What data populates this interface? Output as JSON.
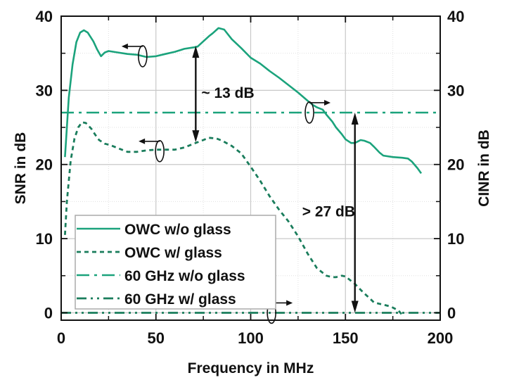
{
  "chart_data": {
    "type": "line",
    "title": "",
    "xlabel": "Frequency in MHz",
    "ylabel": "SNR in dB",
    "y2label": "CINR in dB",
    "xlim": [
      0,
      200
    ],
    "ylim": [
      -1,
      40
    ],
    "y2lim": [
      -1,
      40
    ],
    "xticks": [
      0,
      50,
      100,
      150,
      200
    ],
    "yticks": [
      0,
      10,
      20,
      30,
      40
    ],
    "y2ticks": [
      0,
      10,
      20,
      30,
      40
    ],
    "grid": true,
    "legend_position": "bottom-left",
    "colors": {
      "teal": "#1ba37c",
      "dark_teal": "#1a7d5c",
      "annotation": "#000000"
    },
    "series": [
      {
        "name": "OWC w/o glass",
        "style": "solid",
        "axis": "left",
        "x": [
          2,
          4,
          6,
          8,
          10,
          12,
          14,
          17,
          19,
          21,
          23,
          25,
          30,
          35,
          40,
          45,
          50,
          55,
          60,
          65,
          70,
          72,
          75,
          78,
          80,
          83,
          86,
          90,
          95,
          100,
          105,
          110,
          115,
          120,
          125,
          130,
          133,
          135,
          138,
          140,
          143,
          145,
          148,
          150,
          153,
          155,
          158,
          160,
          163,
          165,
          168,
          170,
          175,
          180,
          183,
          185,
          188,
          190
        ],
        "y": [
          21,
          29,
          33.5,
          36.5,
          37.8,
          38.1,
          37.8,
          36.6,
          35.5,
          34.6,
          35.1,
          35.3,
          35.1,
          34.9,
          34.8,
          34.5,
          34.6,
          34.9,
          35.2,
          35.6,
          35.8,
          35.9,
          36.6,
          37.3,
          37.7,
          38.4,
          38.2,
          36.9,
          35.7,
          34.4,
          33.6,
          32.6,
          31.7,
          30.7,
          29.7,
          28.6,
          28.0,
          27.7,
          27.4,
          26.7,
          25.8,
          25.0,
          24.1,
          23.4,
          22.9,
          22.9,
          23.3,
          23.2,
          22.9,
          22.4,
          21.6,
          21.2,
          21.0,
          20.9,
          20.8,
          20.4,
          19.5,
          18.8
        ]
      },
      {
        "name": "OWC w/ glass",
        "style": "dashed",
        "axis": "left",
        "x": [
          2,
          3,
          5,
          7,
          9,
          11,
          13,
          16,
          18,
          20,
          23,
          26,
          30,
          35,
          40,
          45,
          50,
          55,
          60,
          65,
          70,
          75,
          78,
          82,
          85,
          90,
          95,
          100,
          105,
          110,
          115,
          120,
          125,
          130,
          133,
          135,
          138,
          140,
          143,
          145,
          148,
          150,
          153,
          155,
          158,
          160,
          163,
          165,
          168,
          170,
          173,
          175,
          178,
          180
        ],
        "y": [
          10.5,
          15,
          20.5,
          23.5,
          25,
          25.7,
          25.6,
          24.8,
          24.0,
          23.3,
          22.8,
          22.6,
          22.2,
          21.7,
          21.7,
          21.9,
          22.0,
          22.0,
          22.0,
          22.3,
          22.8,
          23.3,
          23.6,
          23.5,
          23.2,
          22.5,
          21.5,
          19.7,
          17.8,
          15.7,
          13.9,
          12.3,
          10.3,
          8.0,
          6.8,
          6.0,
          5.4,
          5.0,
          4.8,
          4.8,
          5.0,
          4.9,
          4.3,
          3.9,
          3.1,
          2.6,
          1.9,
          1.4,
          1.2,
          1.1,
          0.9,
          0.7,
          0.3,
          -0.3
        ]
      },
      {
        "name": "60 GHz w/o glass",
        "style": "dash-dot",
        "axis": "right",
        "x": [
          0,
          200
        ],
        "y": [
          27,
          27
        ]
      },
      {
        "name": "60 GHz w/ glass",
        "style": "dash-dot-dot",
        "axis": "right",
        "x": [
          0,
          200
        ],
        "y": [
          0,
          0
        ]
      }
    ],
    "annotations": [
      {
        "text": "~ 13 dB",
        "type": "double-arrow",
        "x": 71,
        "y_from": 36,
        "y_to": 23
      },
      {
        "text": "> 27 dB",
        "type": "double-arrow",
        "x": 155,
        "y_from": 27,
        "y_to": 0
      }
    ],
    "axis_markers": [
      {
        "series": "OWC w/o glass",
        "direction": "left",
        "x": 43,
        "y": 34.6
      },
      {
        "series": "OWC w/ glass",
        "direction": "left",
        "x": 52,
        "y": 21.8
      },
      {
        "series": "60 GHz w/o glass",
        "direction": "right",
        "x": 131,
        "y": 27
      },
      {
        "series": "60 GHz w/ glass",
        "direction": "right",
        "x": 111,
        "y": 0
      }
    ]
  }
}
